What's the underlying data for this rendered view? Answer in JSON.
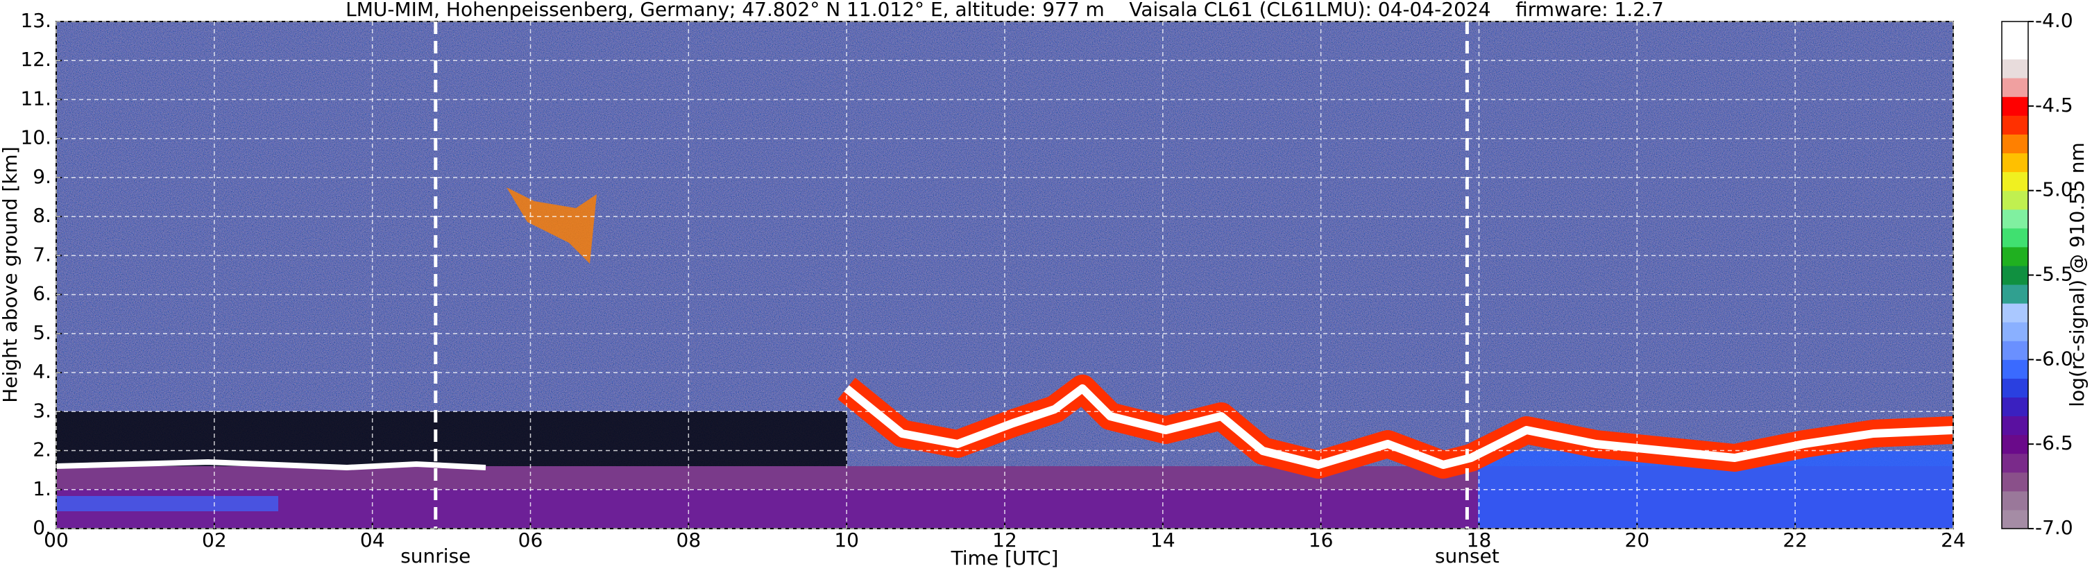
{
  "chart_data": {
    "type": "heatmap",
    "title": "LMU-MIM, Hohenpeissenberg, Germany; 47.802° N 11.012° E, altitude: 977 m    Vaisala CL61 (CL61LMU): 04-04-2024    firmware: 1.2.7",
    "xlabel": "Time [UTC]",
    "ylabel": "Height above ground [km]",
    "xlim": [
      0,
      24
    ],
    "xticks": [
      {
        "value": 0,
        "label": "00"
      },
      {
        "value": 2,
        "label": "02"
      },
      {
        "value": 4,
        "label": "04"
      },
      {
        "value": 6,
        "label": "06"
      },
      {
        "value": 8,
        "label": "08"
      },
      10,
      12,
      14,
      16,
      18,
      20,
      22,
      24
    ],
    "ylim": [
      0,
      13
    ],
    "yticks": [
      {
        "value": 0,
        "label": "0."
      },
      {
        "value": 1,
        "label": "1."
      },
      {
        "value": 2,
        "label": "2."
      },
      {
        "value": 3,
        "label": "3."
      },
      {
        "value": 4,
        "label": "4."
      },
      {
        "value": 5,
        "label": "5."
      },
      {
        "value": 6,
        "label": "6."
      },
      {
        "value": 7,
        "label": "7."
      },
      {
        "value": 8,
        "label": "8."
      },
      {
        "value": 9,
        "label": "9."
      },
      {
        "value": 10,
        "label": "10."
      },
      {
        "value": 11,
        "label": "11."
      },
      {
        "value": 12,
        "label": "12."
      },
      {
        "value": 13,
        "label": "13."
      }
    ],
    "grid": true,
    "annotations": [
      {
        "x": 4.8,
        "label": "sunrise"
      },
      {
        "x": 17.85,
        "label": "sunset"
      }
    ],
    "colorbar": {
      "label": "log(rc-signal) @ 910.55 nm",
      "lim": [
        -7,
        -4
      ],
      "ticks": [
        {
          "value": -7,
          "label": "-7.0"
        },
        -6.5,
        {
          "value": -6,
          "label": "-6.0"
        },
        -5.5,
        {
          "value": -5,
          "label": "-5.0"
        },
        -4.5,
        {
          "value": -4,
          "label": "-4.0"
        }
      ],
      "colors": [
        "#a58ca5",
        "#9a789a",
        "#8a508a",
        "#7a2a8a",
        "#6a0a8a",
        "#5a10a0",
        "#3a20c0",
        "#2a40e0",
        "#3a6aff",
        "#6a90ff",
        "#8ab0ff",
        "#aac8ff",
        "#30a090",
        "#109040",
        "#20b020",
        "#40e070",
        "#80f0a0",
        "#c0f050",
        "#f0f020",
        "#ffc000",
        "#ff8000",
        "#ff3000",
        "#ff0000",
        "#f0a0a0",
        "#e8dcdc",
        "#ffffff",
        "#ffffff"
      ]
    }
  }
}
